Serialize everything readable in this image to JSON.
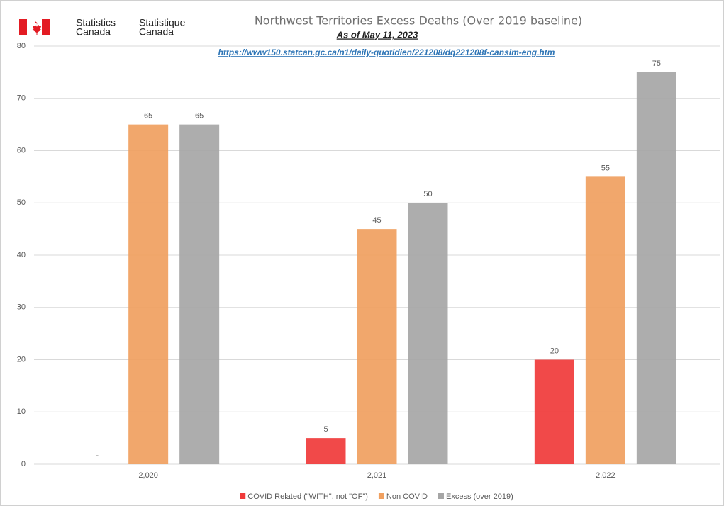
{
  "chart_data": {
    "type": "bar",
    "title": "Northwest Territories Excess Deaths (Over 2019 baseline)",
    "subtitle": "As of May 11, 2023",
    "source_url": "https://www150.statcan.gc.ca/n1/daily-quotidien/221208/dq221208f-cansim-eng.htm",
    "logo": {
      "en": [
        "Statistics",
        "Canada"
      ],
      "fr": [
        "Statistique",
        "Canada"
      ]
    },
    "categories": [
      "2,020",
      "2,021",
      "2,022"
    ],
    "series": [
      {
        "name": "COVID Related (\"WITH\", not \"OF\")",
        "color": "#f03a3a",
        "values": [
          0,
          5,
          20
        ],
        "value_labels": [
          "-",
          "5",
          "20"
        ]
      },
      {
        "name": "Non COVID",
        "color": "#f0a060",
        "values": [
          65,
          45,
          55
        ]
      },
      {
        "name": "Excess (over 2019)",
        "color": "#a6a6a6",
        "values": [
          65,
          50,
          75
        ]
      }
    ],
    "ylim": [
      0,
      80
    ],
    "yticks": [
      0,
      10,
      20,
      30,
      40,
      50,
      60,
      70,
      80
    ],
    "grid": true,
    "legend": "bottom"
  }
}
